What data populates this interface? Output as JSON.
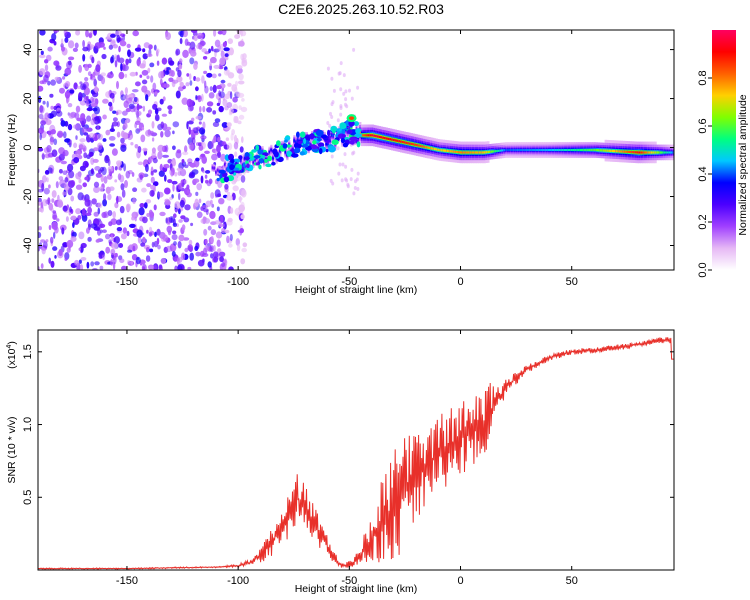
{
  "title": "C2E6.2025.263.10.52.R03",
  "chart_data": [
    {
      "type": "heatmap",
      "title": "C2E6.2025.263.10.52.R03",
      "xlabel": "Height of straight line (km)",
      "ylabel": "Frequency (Hz)",
      "xlim": [
        -190,
        96
      ],
      "ylim": [
        -50,
        48
      ],
      "x_ticks": [
        -150,
        -100,
        -50,
        0,
        50
      ],
      "y_ticks": [
        -40,
        -20,
        0,
        20,
        40
      ],
      "colorbar": {
        "label": "Normalized spectral amplitude",
        "range": [
          0,
          1
        ],
        "ticks": [
          0.0,
          0.2,
          0.4,
          0.6,
          0.8
        ],
        "tick_labels": [
          "0.0",
          "0.2",
          "0.4",
          "0.6",
          "0.8"
        ],
        "colormap": [
          "#ffffff",
          "#e6b8f5",
          "#a040ff",
          "#4b00ff",
          "#0000ff",
          "#00c8ff",
          "#00ff80",
          "#80ff00",
          "#ffd000",
          "#ff6000",
          "#ff0000",
          "#ff0060"
        ]
      },
      "ridge": {
        "x": [
          -110,
          -100,
          -90,
          -80,
          -70,
          -60,
          -50,
          -45,
          -40,
          -30,
          -20,
          -10,
          0,
          10,
          20,
          40,
          60,
          80,
          96
        ],
        "frequency": [
          -10,
          -7,
          -4,
          -1,
          2,
          3,
          6,
          5,
          5,
          3,
          1,
          -1,
          -2,
          -2,
          -1,
          -1,
          -1,
          -2,
          -2
        ],
        "amplitude": [
          0.25,
          0.3,
          0.3,
          0.35,
          0.4,
          0.35,
          0.55,
          0.8,
          0.95,
          0.9,
          0.85,
          0.7,
          0.8,
          0.75,
          0.4,
          0.45,
          0.6,
          0.9,
          0.4
        ]
      },
      "noise_region_x": [
        -190,
        -105
      ]
    },
    {
      "type": "line",
      "xlabel": "Height of straight line (km)",
      "ylabel": "SNR (10 * v/v)",
      "scale_label": "(x10",
      "scale_exponent": "4",
      "xlim": [
        -190,
        96
      ],
      "ylim": [
        0,
        1.65
      ],
      "x_ticks": [
        -150,
        -100,
        -50,
        0,
        50
      ],
      "y_ticks": [
        0.5,
        1.0,
        1.5
      ],
      "y_tick_labels": [
        "0.5",
        "1.0",
        "1.5"
      ],
      "series": [
        {
          "name": "SNR",
          "color": "#e8302a",
          "x": [
            -190,
            -150,
            -110,
            -100,
            -95,
            -90,
            -85,
            -80,
            -77,
            -74,
            -71,
            -68,
            -65,
            -62,
            -58,
            -55,
            -52,
            -48,
            -44,
            -40,
            -36,
            -32,
            -28,
            -24,
            -20,
            -15,
            -10,
            -5,
            0,
            5,
            10,
            14,
            18,
            22,
            26,
            30,
            35,
            40,
            45,
            50,
            60,
            70,
            80,
            90,
            96
          ],
          "values": [
            0.01,
            0.01,
            0.02,
            0.03,
            0.05,
            0.1,
            0.18,
            0.3,
            0.4,
            0.5,
            0.45,
            0.38,
            0.3,
            0.22,
            0.12,
            0.05,
            0.03,
            0.05,
            0.12,
            0.22,
            0.3,
            0.38,
            0.48,
            0.6,
            0.65,
            0.72,
            0.8,
            0.85,
            0.9,
            0.95,
            1.0,
            1.1,
            1.2,
            1.28,
            1.33,
            1.38,
            1.42,
            1.46,
            1.48,
            1.5,
            1.51,
            1.53,
            1.55,
            1.58,
            1.58
          ],
          "noise": [
            0.004,
            0.004,
            0.005,
            0.01,
            0.02,
            0.05,
            0.1,
            0.15,
            0.2,
            0.2,
            0.18,
            0.16,
            0.12,
            0.1,
            0.06,
            0.03,
            0.02,
            0.04,
            0.1,
            0.2,
            0.3,
            0.35,
            0.4,
            0.35,
            0.3,
            0.28,
            0.28,
            0.26,
            0.26,
            0.26,
            0.26,
            0.2,
            0.1,
            0.06,
            0.04,
            0.03,
            0.025,
            0.02,
            0.02,
            0.02,
            0.02,
            0.02,
            0.02,
            0.02,
            0.02
          ]
        }
      ]
    }
  ]
}
